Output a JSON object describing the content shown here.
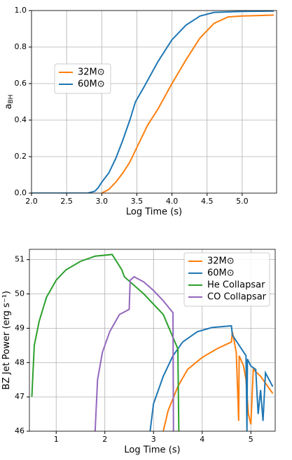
{
  "chart_data": [
    {
      "type": "line",
      "xlabel": "Log Time (s)",
      "ylabel": "a",
      "ylabel_sub": "BH",
      "xlim": [
        2.0,
        5.49
      ],
      "ylim": [
        0,
        1.0
      ],
      "xticks": [
        {
          "value": 2.0,
          "label": "2.0"
        },
        {
          "value": 2.5,
          "label": "2.5"
        },
        {
          "value": 3.0,
          "label": "3.0"
        },
        {
          "value": 3.5,
          "label": "3.5"
        },
        {
          "value": 4.0,
          "label": "4.0"
        },
        {
          "value": 4.5,
          "label": "4.5"
        },
        {
          "value": 5.0,
          "label": "5.0"
        }
      ],
      "yticks": [
        {
          "value": 0,
          "label": "0.0"
        },
        {
          "value": 0.2,
          "label": "0.2"
        },
        {
          "value": 0.4,
          "label": "0.4"
        },
        {
          "value": 0.6,
          "label": "0.6"
        },
        {
          "value": 0.8,
          "label": "0.8"
        },
        {
          "value": 1.0,
          "label": "1.0"
        }
      ],
      "grid": true,
      "legend": "center left",
      "series": [
        {
          "name": "32M⊙",
          "color": "#ff7f0e",
          "x": [
            3.0,
            3.1,
            3.2,
            3.3,
            3.4,
            3.5,
            3.6,
            3.65,
            3.8,
            4.0,
            4.2,
            4.4,
            4.6,
            4.8,
            5.0,
            5.2,
            5.45
          ],
          "values": [
            0,
            0.02,
            0.06,
            0.11,
            0.17,
            0.25,
            0.33,
            0.37,
            0.46,
            0.6,
            0.73,
            0.85,
            0.93,
            0.965,
            0.97,
            0.972,
            0.975
          ]
        },
        {
          "name": "60M⊙",
          "color": "#1f77b4",
          "x": [
            2.0,
            2.8,
            2.9,
            2.95,
            3.0,
            3.1,
            3.2,
            3.3,
            3.4,
            3.48,
            3.6,
            3.8,
            4.0,
            4.2,
            4.4,
            4.6,
            5.0,
            5.45
          ],
          "values": [
            0,
            0,
            0.01,
            0.03,
            0.06,
            0.11,
            0.19,
            0.29,
            0.4,
            0.5,
            0.58,
            0.72,
            0.84,
            0.92,
            0.97,
            0.99,
            0.995,
            0.997
          ]
        }
      ]
    },
    {
      "type": "line",
      "xlabel": "Log Time (s)",
      "ylabel": "BZ Jet Power (erg s⁻¹)",
      "xlim": [
        0.45,
        5.5
      ],
      "ylim": [
        46,
        51.3
      ],
      "xticks": [
        1,
        2,
        3,
        4,
        5
      ],
      "yticks": [
        46,
        47,
        48,
        49,
        50,
        51
      ],
      "grid": true,
      "legend": "upper right",
      "series": [
        {
          "name": "32M⊙",
          "color": "#ff7f0e",
          "x": [
            3.2,
            3.3,
            3.5,
            3.7,
            4.0,
            4.3,
            4.6,
            4.62,
            4.7,
            4.75,
            4.76,
            4.85,
            4.9,
            4.95,
            5.0,
            5.05,
            5.2,
            5.45
          ],
          "values": [
            46,
            46.6,
            47.3,
            47.8,
            48.15,
            48.4,
            48.6,
            48.9,
            48.3,
            46.3,
            48.2,
            47.9,
            47.5,
            46.5,
            46.2,
            47.8,
            47.6,
            47.1
          ]
        },
        {
          "name": "60M⊙",
          "color": "#1f77b4",
          "x": [
            2.93,
            3.0,
            3.2,
            3.4,
            3.6,
            3.9,
            4.2,
            4.6,
            4.62,
            4.9,
            4.92,
            4.93,
            5.0,
            5.1,
            5.15,
            5.2,
            5.25,
            5.3,
            5.45
          ],
          "values": [
            46,
            46.8,
            47.6,
            48.2,
            48.6,
            48.9,
            49.02,
            49.07,
            48.8,
            48.2,
            46,
            48.1,
            47.9,
            47.8,
            46.5,
            47.2,
            46.3,
            47.7,
            47.3
          ]
        },
        {
          "name": "He Collapsar",
          "color": "#2ca02c",
          "x": [
            0.5,
            0.55,
            0.65,
            0.8,
            1.0,
            1.2,
            1.5,
            1.8,
            2.15,
            2.35,
            2.4,
            2.8,
            3.2,
            3.5,
            3.52
          ],
          "values": [
            47.0,
            48.5,
            49.2,
            49.9,
            50.4,
            50.7,
            50.95,
            51.1,
            51.15,
            50.7,
            50.5,
            50.0,
            49.4,
            48.4,
            46
          ]
        },
        {
          "name": "CO Collapsar",
          "color": "#9467bd",
          "x": [
            1.8,
            1.85,
            1.95,
            2.1,
            2.3,
            2.5,
            2.52,
            2.6,
            2.8,
            3.0,
            3.2,
            3.4,
            3.41
          ],
          "values": [
            46,
            47.5,
            48.3,
            48.9,
            49.4,
            49.55,
            50.4,
            50.5,
            50.35,
            50.1,
            49.8,
            49.45,
            46
          ]
        }
      ]
    }
  ]
}
